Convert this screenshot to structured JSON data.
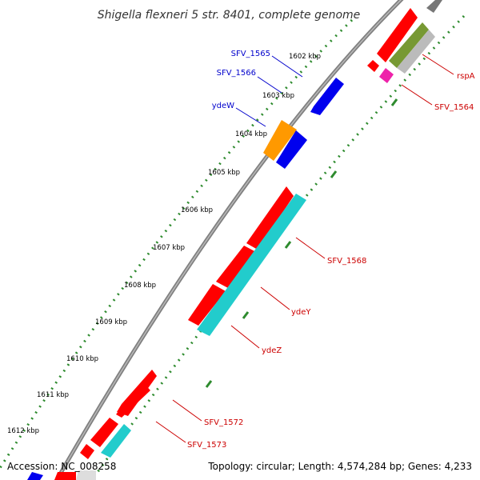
{
  "title": "Shigella flexneri 5 str. 8401, complete genome",
  "footer": {
    "accession": "Accession: NC_008258",
    "summary": "Topology: circular; Length: 4,574,284 bp; Genes: 4,233"
  },
  "colors": {
    "backbone": "#808080",
    "tick_dots": "#2e8b2e",
    "label_blue": "#0000cc",
    "label_red": "#cc0000",
    "red": "#ff0000",
    "blue": "#0000ee",
    "orange": "#ff9900",
    "cyan": "#22cccc",
    "olive": "#779933",
    "pink": "#ee22aa",
    "grey": "#999999",
    "light_grey": "#cccccc"
  },
  "ticks": [
    "1602 kbp",
    "1603 kbp",
    "1604 kbp",
    "1605 kbp",
    "1606 kbp",
    "1607 kbp",
    "1608 kbp",
    "1609 kbp",
    "1610 kbp",
    "1611 kbp",
    "1612 kbp"
  ],
  "gene_labels": [
    {
      "name": "SFV_1565",
      "color": "#0000cc"
    },
    {
      "name": "SFV_1566",
      "color": "#0000cc"
    },
    {
      "name": "ydeW",
      "color": "#0000cc"
    },
    {
      "name": "rspA",
      "color": "#cc0000"
    },
    {
      "name": "SFV_1564",
      "color": "#cc0000"
    },
    {
      "name": "SFV_1568",
      "color": "#cc0000"
    },
    {
      "name": "ydeY",
      "color": "#cc0000"
    },
    {
      "name": "ydeZ",
      "color": "#cc0000"
    },
    {
      "name": "SFV_1572",
      "color": "#cc0000"
    },
    {
      "name": "SFV_1573",
      "color": "#cc0000"
    }
  ]
}
